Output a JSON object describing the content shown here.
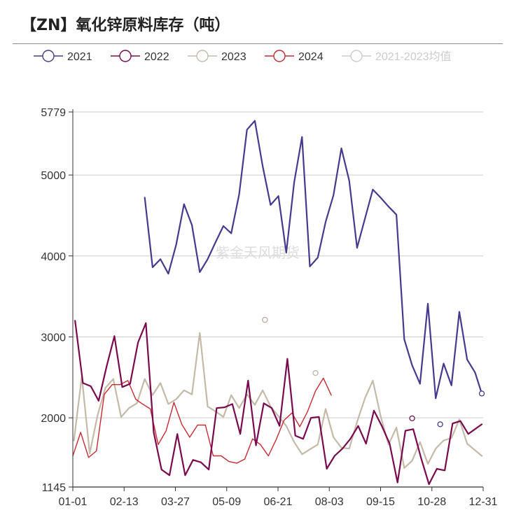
{
  "title": "【ZN】氧化锌原料库存（吨）",
  "watermark": "紫金天风期货",
  "chart_data": {
    "type": "line",
    "title": "【ZN】氧化锌原料库存（吨）",
    "xlabel": "",
    "ylabel": "",
    "x_axis_type": "date (month-day, Jan 01 to Dec 31)",
    "xticks": [
      "01-01",
      "02-13",
      "03-27",
      "05-09",
      "06-21",
      "08-03",
      "09-15",
      "10-28",
      "12-31"
    ],
    "yticks": [
      1145,
      2000,
      3000,
      4000,
      5000,
      5779
    ],
    "ylim": [
      1145,
      5779
    ],
    "grid": "horizontal",
    "legend_position": "top",
    "series": [
      {
        "name": "2021",
        "color": "#463a8f",
        "line_width": 2.2,
        "markers": [
          "11-24",
          "12-31"
        ],
        "points": [
          [
            "03-06",
            4720
          ],
          [
            "03-13",
            3860
          ],
          [
            "03-20",
            3960
          ],
          [
            "03-27",
            3780
          ],
          [
            "04-03",
            4140
          ],
          [
            "04-10",
            4640
          ],
          [
            "04-17",
            4380
          ],
          [
            "04-24",
            3800
          ],
          [
            "05-01",
            3960
          ],
          [
            "05-08",
            4170
          ],
          [
            "05-15",
            4370
          ],
          [
            "05-22",
            4280
          ],
          [
            "05-29",
            4760
          ],
          [
            "06-05",
            5560
          ],
          [
            "06-12",
            5670
          ],
          [
            "06-19",
            5110
          ],
          [
            "06-26",
            4630
          ],
          [
            "07-03",
            4740
          ],
          [
            "07-10",
            4040
          ],
          [
            "07-17",
            4910
          ],
          [
            "07-24",
            5470
          ],
          [
            "07-31",
            3870
          ],
          [
            "08-07",
            3980
          ],
          [
            "08-14",
            4420
          ],
          [
            "08-21",
            4750
          ],
          [
            "08-28",
            5330
          ],
          [
            "09-04",
            4930
          ],
          [
            "09-11",
            4100
          ],
          [
            "09-18",
            4460
          ],
          [
            "09-25",
            4820
          ],
          [
            "10-02",
            4720
          ],
          [
            "10-09",
            4610
          ],
          [
            "10-16",
            4510
          ],
          [
            "10-23",
            2970
          ],
          [
            "10-30",
            2650
          ],
          [
            "11-06",
            2420
          ],
          [
            "11-13",
            3410
          ],
          [
            "11-20",
            2240
          ],
          [
            "11-27",
            2670
          ],
          [
            "12-04",
            2400
          ],
          [
            "12-11",
            3310
          ],
          [
            "12-18",
            2720
          ],
          [
            "12-25",
            2560
          ],
          [
            "12-31",
            2300
          ]
        ]
      },
      {
        "name": "2022",
        "color": "#7a0a4f",
        "line_width": 2.2,
        "markers": [
          "10-30"
        ],
        "points": [
          [
            "01-03",
            3200
          ],
          [
            "01-10",
            2430
          ],
          [
            "01-17",
            2390
          ],
          [
            "01-24",
            2210
          ],
          [
            "01-31",
            2630
          ],
          [
            "02-07",
            3010
          ],
          [
            "02-14",
            2380
          ],
          [
            "02-21",
            2420
          ],
          [
            "02-28",
            2930
          ],
          [
            "03-07",
            3170
          ],
          [
            "03-14",
            1820
          ],
          [
            "03-21",
            1360
          ],
          [
            "03-28",
            1290
          ],
          [
            "04-04",
            1800
          ],
          [
            "04-11",
            1290
          ],
          [
            "04-18",
            1480
          ],
          [
            "04-25",
            1450
          ],
          [
            "05-02",
            1360
          ],
          [
            "05-09",
            2120
          ],
          [
            "05-16",
            2130
          ],
          [
            "05-23",
            2170
          ],
          [
            "05-30",
            1800
          ],
          [
            "06-06",
            2460
          ],
          [
            "06-13",
            1660
          ],
          [
            "06-20",
            2180
          ],
          [
            "06-27",
            2120
          ],
          [
            "07-04",
            1900
          ],
          [
            "07-11",
            2730
          ],
          [
            "07-18",
            1780
          ],
          [
            "07-25",
            1740
          ],
          [
            "08-01",
            2000
          ],
          [
            "08-08",
            2010
          ],
          [
            "08-15",
            1370
          ],
          [
            "08-22",
            1530
          ],
          [
            "08-29",
            1620
          ],
          [
            "09-05",
            1740
          ],
          [
            "09-12",
            1900
          ],
          [
            "09-19",
            1680
          ],
          [
            "09-26",
            2090
          ],
          [
            "10-03",
            1900
          ],
          [
            "10-10",
            1680
          ],
          [
            "10-17",
            1200
          ],
          [
            "10-24",
            1840
          ],
          [
            "10-31",
            1860
          ],
          [
            "11-07",
            1500
          ],
          [
            "11-14",
            1180
          ],
          [
            "11-21",
            1370
          ],
          [
            "11-28",
            1350
          ],
          [
            "12-05",
            1930
          ],
          [
            "12-12",
            1960
          ],
          [
            "12-19",
            1800
          ],
          [
            "12-31",
            1920
          ]
        ]
      },
      {
        "name": "2023",
        "color": "#c5b9a8",
        "line_width": 2.2,
        "markers": [],
        "points": [
          [
            "01-02",
            1720
          ],
          [
            "01-09",
            2510
          ],
          [
            "01-16",
            1560
          ],
          [
            "01-23",
            2030
          ],
          [
            "01-30",
            2370
          ],
          [
            "02-06",
            2480
          ],
          [
            "02-13",
            2010
          ],
          [
            "02-20",
            2120
          ],
          [
            "02-27",
            2180
          ],
          [
            "03-06",
            2480
          ],
          [
            "03-13",
            2280
          ],
          [
            "03-20",
            2430
          ],
          [
            "03-27",
            2170
          ],
          [
            "04-03",
            2230
          ],
          [
            "04-10",
            2340
          ],
          [
            "04-17",
            2290
          ],
          [
            "04-24",
            3050
          ],
          [
            "05-01",
            2140
          ],
          [
            "05-08",
            2080
          ],
          [
            "05-15",
            2010
          ],
          [
            "05-22",
            2280
          ],
          [
            "05-29",
            2120
          ],
          [
            "06-05",
            2290
          ],
          [
            "06-12",
            2160
          ],
          [
            "06-19",
            2340
          ],
          [
            "06-26",
            2140
          ],
          [
            "07-03",
            2020
          ],
          [
            "07-10",
            1900
          ],
          [
            "07-17",
            1700
          ],
          [
            "07-24",
            1550
          ],
          [
            "07-31",
            1610
          ],
          [
            "08-07",
            1670
          ],
          [
            "08-14",
            2110
          ],
          [
            "08-21",
            1760
          ],
          [
            "08-28",
            1630
          ],
          [
            "09-04",
            1620
          ],
          [
            "09-11",
            1950
          ],
          [
            "09-18",
            2240
          ],
          [
            "09-25",
            2460
          ],
          [
            "10-02",
            2020
          ],
          [
            "10-09",
            1670
          ],
          [
            "10-16",
            1880
          ],
          [
            "10-23",
            1380
          ],
          [
            "10-30",
            1470
          ],
          [
            "11-06",
            1700
          ],
          [
            "11-13",
            1430
          ],
          [
            "11-20",
            1620
          ],
          [
            "11-27",
            1720
          ],
          [
            "12-04",
            1750
          ],
          [
            "12-11",
            1980
          ],
          [
            "12-18",
            1680
          ],
          [
            "12-31",
            1530
          ]
        ]
      },
      {
        "name": "2024",
        "color": "#c82a31",
        "line_width": 1.4,
        "markers": [
          "06-21"
        ],
        "points": [
          [
            "01-01",
            1530
          ],
          [
            "01-08",
            1820
          ],
          [
            "01-15",
            1510
          ],
          [
            "01-22",
            1590
          ],
          [
            "01-29",
            2290
          ],
          [
            "02-05",
            2410
          ],
          [
            "02-12",
            2410
          ],
          [
            "02-19",
            2460
          ],
          [
            "02-26",
            2230
          ],
          [
            "03-04",
            2170
          ],
          [
            "03-11",
            2110
          ],
          [
            "03-18",
            1670
          ],
          [
            "03-25",
            1840
          ],
          [
            "04-01",
            2190
          ],
          [
            "04-08",
            1920
          ],
          [
            "04-15",
            1760
          ],
          [
            "04-22",
            1910
          ],
          [
            "04-29",
            1910
          ],
          [
            "05-06",
            1530
          ],
          [
            "05-13",
            1530
          ],
          [
            "05-20",
            1460
          ],
          [
            "05-27",
            1440
          ],
          [
            "06-03",
            1490
          ],
          [
            "06-10",
            1740
          ],
          [
            "06-17",
            1670
          ],
          [
            "06-24",
            1530
          ],
          [
            "07-01",
            1730
          ],
          [
            "07-08",
            1970
          ],
          [
            "07-15",
            2060
          ],
          [
            "07-22",
            1890
          ],
          [
            "07-29",
            2080
          ],
          [
            "08-05",
            2330
          ],
          [
            "08-12",
            2490
          ],
          [
            "08-19",
            2280
          ]
        ]
      },
      {
        "name": "2021-2023均值",
        "color": "#d8d2c8",
        "line_width": 1.4,
        "legend_disabled": true,
        "markers": [
          "06-21",
          "08-05"
        ],
        "points": []
      }
    ]
  }
}
